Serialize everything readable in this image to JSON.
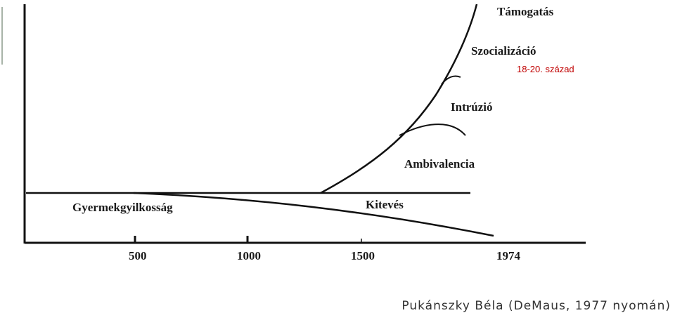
{
  "diagram": {
    "phases": {
      "tamogatas": "Támogatás",
      "szocializacio": "Szocializáció",
      "intruzio": "Intrúzió",
      "ambivalencia": "Ambivalencia",
      "kiteves": "Kitevés",
      "gyermekgyilkossag": "Gyermekgyilkosság"
    },
    "axis_ticks": [
      "500",
      "1000",
      "1500",
      "1974"
    ],
    "annotation": "18-20. század"
  },
  "colors": {
    "line": "#111111",
    "annotation": "#c00000",
    "slide_accent": "#8a9a8a"
  },
  "caption": "Pukánszky Béla (DeMaus, 1977 nyomán)"
}
